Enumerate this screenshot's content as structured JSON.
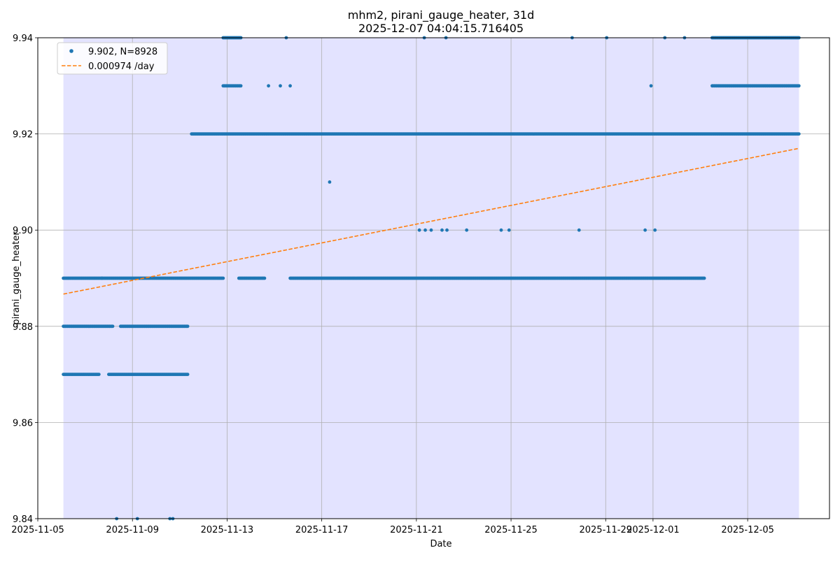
{
  "chart_data": {
    "type": "scatter",
    "title": "mhm2, pirani_gauge_heater, 31d",
    "subtitle": "2025-12-07 04:04:15.716405",
    "xlabel": "Date",
    "ylabel": "pirani_gauge_heater",
    "xlim": [
      "2025-11-05 00:00",
      "2025-12-08 11:00"
    ],
    "ylim": [
      9.84,
      9.94
    ],
    "grid": true,
    "legend_position": "top-left",
    "x_ticks": [
      "2025-11-05",
      "2025-11-09",
      "2025-11-13",
      "2025-11-17",
      "2025-11-21",
      "2025-11-25",
      "2025-11-29",
      "2025-12-01",
      "2025-12-05"
    ],
    "y_ticks": [
      "9.84",
      "9.86",
      "9.88",
      "9.90",
      "9.92",
      "9.94"
    ],
    "shaded_span": [
      "2025-11-06 02:00",
      "2025-12-07 04:04"
    ],
    "colors": {
      "points": "#1f77b4",
      "trend": "#ff7f0e",
      "span": "#e3e3ff",
      "grid": "#b0b0b0"
    },
    "series": [
      {
        "name": "9.902, N=8928",
        "kind": "points",
        "segments": [
          {
            "y": 9.87,
            "from": "2025-11-06 02:00",
            "to": "2025-11-07 14:00"
          },
          {
            "y": 9.87,
            "from": "2025-11-08 00:00",
            "to": "2025-11-11 08:00"
          },
          {
            "y": 9.88,
            "from": "2025-11-06 02:00",
            "to": "2025-11-08 04:00"
          },
          {
            "y": 9.88,
            "from": "2025-11-08 12:00",
            "to": "2025-11-11 08:00"
          },
          {
            "y": 9.89,
            "from": "2025-11-06 02:00",
            "to": "2025-11-07 17:00"
          },
          {
            "y": 9.89,
            "from": "2025-11-07 17:00",
            "to": "2025-11-12 20:00"
          },
          {
            "y": 9.89,
            "from": "2025-11-13 12:00",
            "to": "2025-11-14 14:00"
          },
          {
            "y": 9.89,
            "from": "2025-11-15 16:00",
            "to": "2025-12-03 04:00"
          },
          {
            "y": 9.92,
            "from": "2025-11-11 12:00",
            "to": "2025-12-07 04:00"
          },
          {
            "y": 9.93,
            "from": "2025-11-12 20:00",
            "to": "2025-11-13 14:00"
          },
          {
            "y": 9.93,
            "from": "2025-12-03 12:00",
            "to": "2025-12-07 04:00"
          },
          {
            "y": 9.94,
            "from": "2025-11-12 20:00",
            "to": "2025-11-13 14:00"
          },
          {
            "y": 9.94,
            "from": "2025-12-03 12:00",
            "to": "2025-12-07 04:00"
          }
        ],
        "points": [
          {
            "x": "2025-11-08 08:00",
            "y": 9.84
          },
          {
            "x": "2025-11-09 05:00",
            "y": 9.84
          },
          {
            "x": "2025-11-10 14:00",
            "y": 9.84
          },
          {
            "x": "2025-11-10 17:00",
            "y": 9.84
          },
          {
            "x": "2025-11-17 08:00",
            "y": 9.91
          },
          {
            "x": "2025-11-21 03:00",
            "y": 9.9
          },
          {
            "x": "2025-11-21 09:00",
            "y": 9.9
          },
          {
            "x": "2025-11-21 15:00",
            "y": 9.9
          },
          {
            "x": "2025-11-22 02:00",
            "y": 9.9
          },
          {
            "x": "2025-11-22 07:00",
            "y": 9.9
          },
          {
            "x": "2025-11-23 03:00",
            "y": 9.9
          },
          {
            "x": "2025-11-24 14:00",
            "y": 9.9
          },
          {
            "x": "2025-11-24 22:00",
            "y": 9.9
          },
          {
            "x": "2025-11-27 21:00",
            "y": 9.9
          },
          {
            "x": "2025-11-30 16:00",
            "y": 9.9
          },
          {
            "x": "2025-12-01 02:00",
            "y": 9.9
          },
          {
            "x": "2025-11-14 18:00",
            "y": 9.93
          },
          {
            "x": "2025-11-15 06:00",
            "y": 9.93
          },
          {
            "x": "2025-11-15 16:00",
            "y": 9.93
          },
          {
            "x": "2025-11-30 22:00",
            "y": 9.93
          },
          {
            "x": "2025-11-15 12:00",
            "y": 9.94
          },
          {
            "x": "2025-11-21 08:00",
            "y": 9.94
          },
          {
            "x": "2025-11-22 06:00",
            "y": 9.94
          },
          {
            "x": "2025-11-27 14:00",
            "y": 9.94
          },
          {
            "x": "2025-11-29 01:00",
            "y": 9.94
          },
          {
            "x": "2025-12-01 12:00",
            "y": 9.94
          },
          {
            "x": "2025-12-02 08:00",
            "y": 9.94
          }
        ]
      },
      {
        "name": "0.000974 /day",
        "kind": "trend",
        "x": [
          "2025-11-06 02:00",
          "2025-12-07 04:04"
        ],
        "y": [
          9.8867,
          9.917
        ]
      }
    ]
  }
}
